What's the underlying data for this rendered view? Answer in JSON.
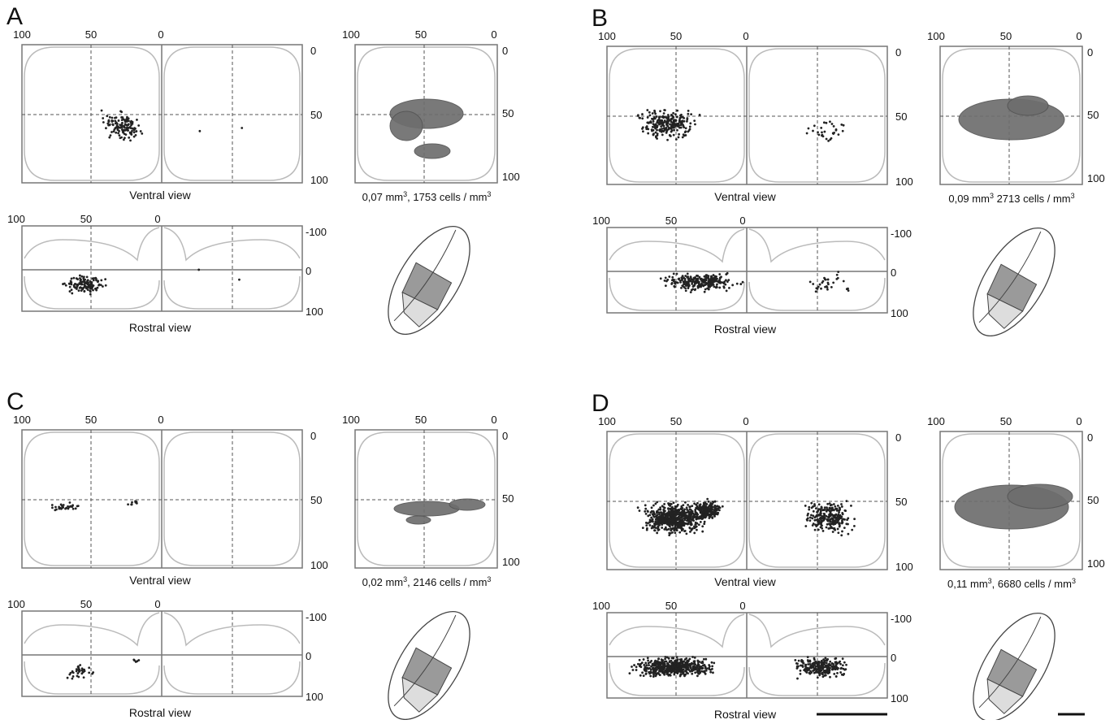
{
  "panels": [
    {
      "letter": "A",
      "ventral": {
        "top_ticks": [
          100,
          50,
          0
        ],
        "right_ticks": [
          0,
          50,
          100
        ],
        "caption": "Ventral view"
      },
      "volume": {
        "top_ticks": [
          100,
          50,
          0
        ],
        "right_ticks": [
          0,
          50,
          100
        ],
        "caption_parts": [
          "0,07 mm",
          "3",
          ", 1753 cells / mm",
          "3"
        ]
      },
      "rostral": {
        "top_ticks": [
          100,
          50,
          0
        ],
        "right_ticks": [
          -100,
          0,
          100
        ],
        "caption": "Rostral view"
      }
    },
    {
      "letter": "B",
      "ventral": {
        "top_ticks": [
          100,
          50,
          0
        ],
        "right_ticks": [
          0,
          50,
          100
        ],
        "caption": "Ventral view"
      },
      "volume": {
        "top_ticks": [
          100,
          50,
          0
        ],
        "right_ticks": [
          0,
          50,
          100
        ],
        "caption_parts": [
          "0,09 mm",
          "3",
          "  2713 cells / mm",
          "3"
        ]
      },
      "rostral": {
        "top_ticks": [
          100,
          50,
          0
        ],
        "right_ticks": [
          -100,
          0,
          100
        ],
        "caption": "Rostral view"
      }
    },
    {
      "letter": "C",
      "ventral": {
        "top_ticks": [
          100,
          50,
          0
        ],
        "right_ticks": [
          0,
          50,
          100
        ],
        "caption": "Ventral view"
      },
      "volume": {
        "top_ticks": [
          100,
          50,
          0
        ],
        "right_ticks": [
          0,
          50,
          100
        ],
        "caption_parts": [
          "0,02 mm",
          "3",
          ", 2146 cells / mm",
          "3"
        ]
      },
      "rostral": {
        "top_ticks": [
          100,
          50,
          0
        ],
        "right_ticks": [
          -100,
          0,
          100
        ],
        "caption": "Rostral view"
      }
    },
    {
      "letter": "D",
      "ventral": {
        "top_ticks": [
          100,
          50,
          0
        ],
        "right_ticks": [
          0,
          50,
          100
        ],
        "caption": "Ventral view"
      },
      "volume": {
        "top_ticks": [
          100,
          50,
          0
        ],
        "right_ticks": [
          0,
          50,
          100
        ],
        "caption_parts": [
          "0,11 mm",
          "3",
          ", 6680 cells / mm",
          "3"
        ]
      },
      "rostral": {
        "top_ticks": [
          100,
          50,
          0
        ],
        "right_ticks": [
          -100,
          0,
          100
        ],
        "caption": "Rostral view"
      }
    }
  ]
}
